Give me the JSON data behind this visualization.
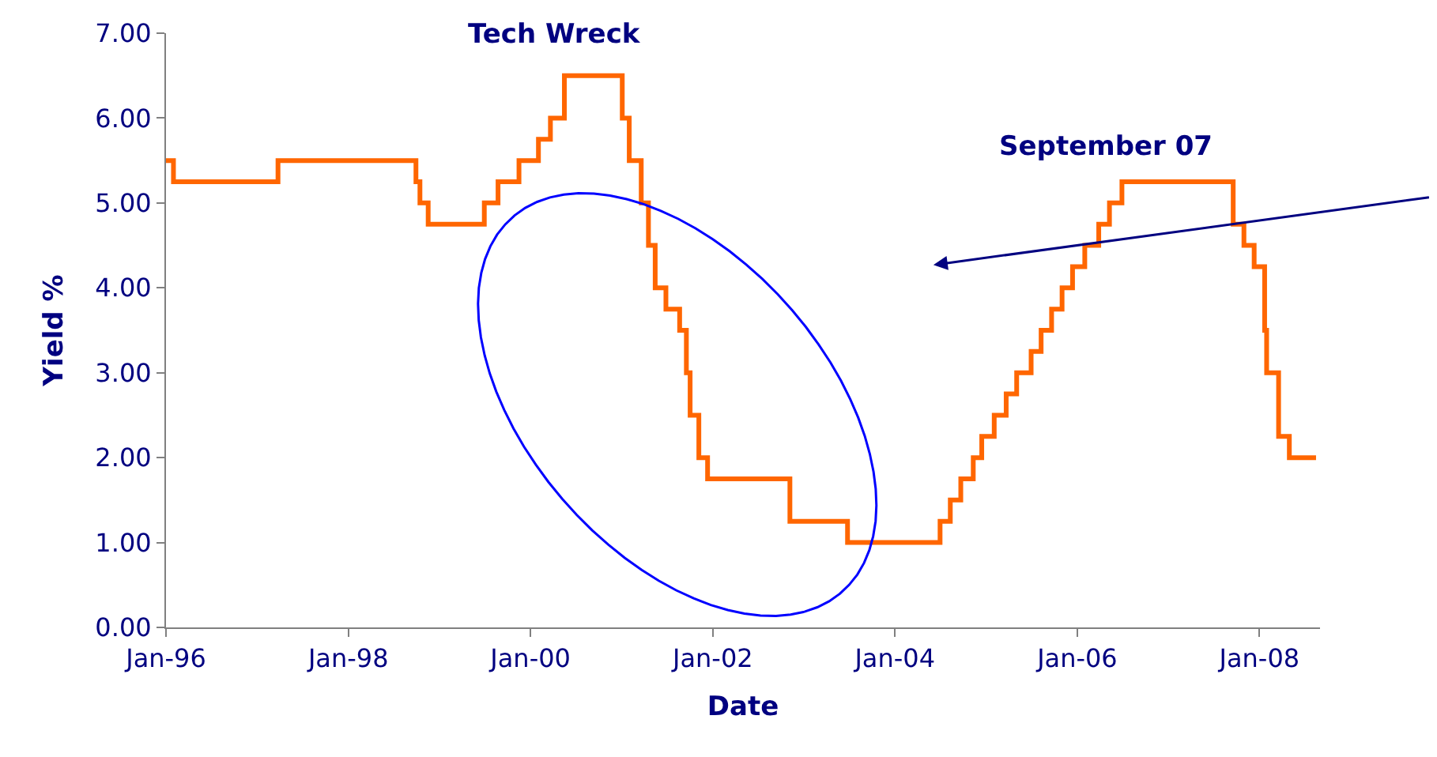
{
  "chart_data": {
    "type": "step",
    "xlabel": "Date",
    "ylabel": "Yield %",
    "annotations": [
      "Tech Wreck",
      "September 07"
    ],
    "x": [
      "1996-01-01",
      "1996-01-31",
      "1997-03-25",
      "1998-09-29",
      "1998-10-15",
      "1998-11-17",
      "1999-06-30",
      "1999-08-24",
      "1999-11-16",
      "2000-02-02",
      "2000-03-21",
      "2000-05-16",
      "2001-01-03",
      "2001-01-31",
      "2001-03-20",
      "2001-04-18",
      "2001-05-15",
      "2001-06-27",
      "2001-08-21",
      "2001-09-17",
      "2001-10-02",
      "2001-11-06",
      "2001-12-11",
      "2002-11-06",
      "2003-06-25",
      "2004-06-30",
      "2004-08-10",
      "2004-09-21",
      "2004-11-10",
      "2004-12-14",
      "2005-02-02",
      "2005-03-22",
      "2005-05-03",
      "2005-06-30",
      "2005-08-09",
      "2005-09-20",
      "2005-11-01",
      "2005-12-13",
      "2006-01-31",
      "2006-03-28",
      "2006-05-10",
      "2006-06-29",
      "2007-09-18",
      "2007-10-31",
      "2007-12-11",
      "2008-01-22",
      "2008-01-30",
      "2008-03-18",
      "2008-04-30",
      "2008-08-15"
    ],
    "series": [
      {
        "color": "#ff6600",
        "values": [
          5.5,
          5.25,
          5.5,
          5.25,
          5.0,
          4.75,
          5.0,
          5.25,
          5.5,
          5.75,
          6.0,
          6.5,
          6.0,
          5.5,
          5.0,
          4.5,
          4.0,
          3.75,
          3.5,
          3.0,
          2.5,
          2.0,
          1.75,
          1.25,
          1.0,
          1.25,
          1.5,
          1.75,
          2.0,
          2.25,
          2.5,
          2.75,
          3.0,
          3.25,
          3.5,
          3.75,
          4.0,
          4.25,
          4.5,
          4.75,
          5.0,
          5.25,
          4.75,
          4.5,
          4.25,
          3.5,
          3.0,
          2.25,
          2.0,
          2.0
        ]
      }
    ],
    "xlim": [
      "1996-01-01",
      "2008-08-31"
    ],
    "xticks": [
      {
        "value": "1996-01-01",
        "label": "Jan-96"
      },
      {
        "value": "1998-01-01",
        "label": "Jan-98"
      },
      {
        "value": "2000-01-01",
        "label": "Jan-00"
      },
      {
        "value": "2002-01-01",
        "label": "Jan-02"
      },
      {
        "value": "2004-01-01",
        "label": "Jan-04"
      },
      {
        "value": "2006-01-01",
        "label": "Jan-06"
      },
      {
        "value": "2008-01-01",
        "label": "Jan-08"
      }
    ],
    "ylim": [
      0,
      7
    ],
    "yticks": [
      {
        "value": 0,
        "label": "0.00"
      },
      {
        "value": 1,
        "label": "1.00"
      },
      {
        "value": 2,
        "label": "2.00"
      },
      {
        "value": 3,
        "label": "3.00"
      },
      {
        "value": 4,
        "label": "4.00"
      },
      {
        "value": 5,
        "label": "5.00"
      },
      {
        "value": 6,
        "label": "6.00"
      },
      {
        "value": 7,
        "label": "7.00"
      }
    ],
    "line_style": "solid",
    "marker": "none"
  }
}
